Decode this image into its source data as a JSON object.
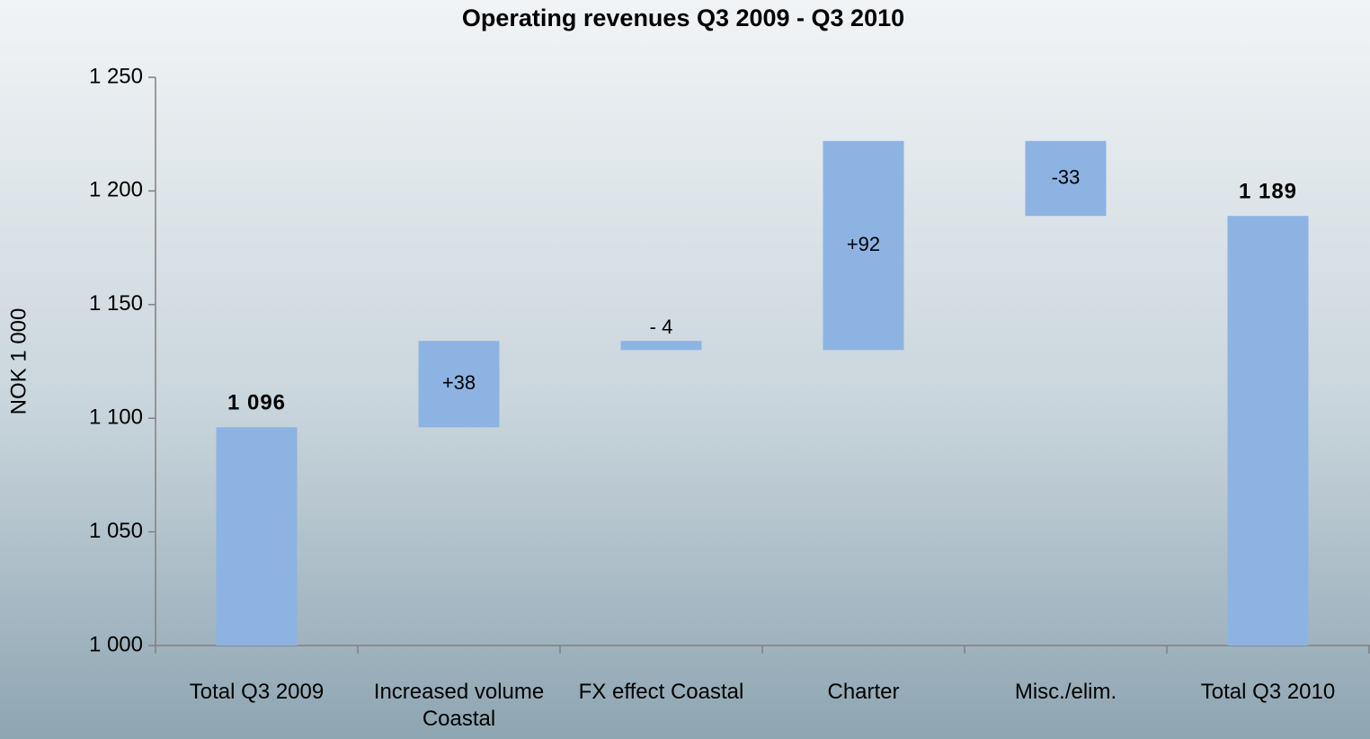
{
  "chart_data": {
    "type": "waterfall",
    "title": "Operating revenues Q3 2009  - Q3 2010",
    "y_label": "NOK 1 000",
    "categories": [
      "Total Q3 2009",
      "Increased volume Coastal",
      "FX effect Coastal",
      "Charter",
      "Misc./elim.",
      "Total Q3 2010"
    ],
    "values": [
      1096,
      38,
      -4,
      92,
      -33,
      1189
    ],
    "value_labels": [
      "1 096",
      "+38",
      "- 4",
      "+92",
      "-33",
      "1 189"
    ],
    "color": "#8db3e2",
    "ylim": [
      1000,
      1250
    ],
    "yticks": [
      {
        "value": 1000,
        "label": "1 000"
      },
      {
        "value": 1050,
        "label": "1 050"
      },
      {
        "value": 1100,
        "label": "1 100"
      },
      {
        "value": 1150,
        "label": "1 150"
      },
      {
        "value": 1200,
        "label": "1 200"
      },
      {
        "value": 1250,
        "label": "1 250"
      }
    ],
    "grid": false
  }
}
